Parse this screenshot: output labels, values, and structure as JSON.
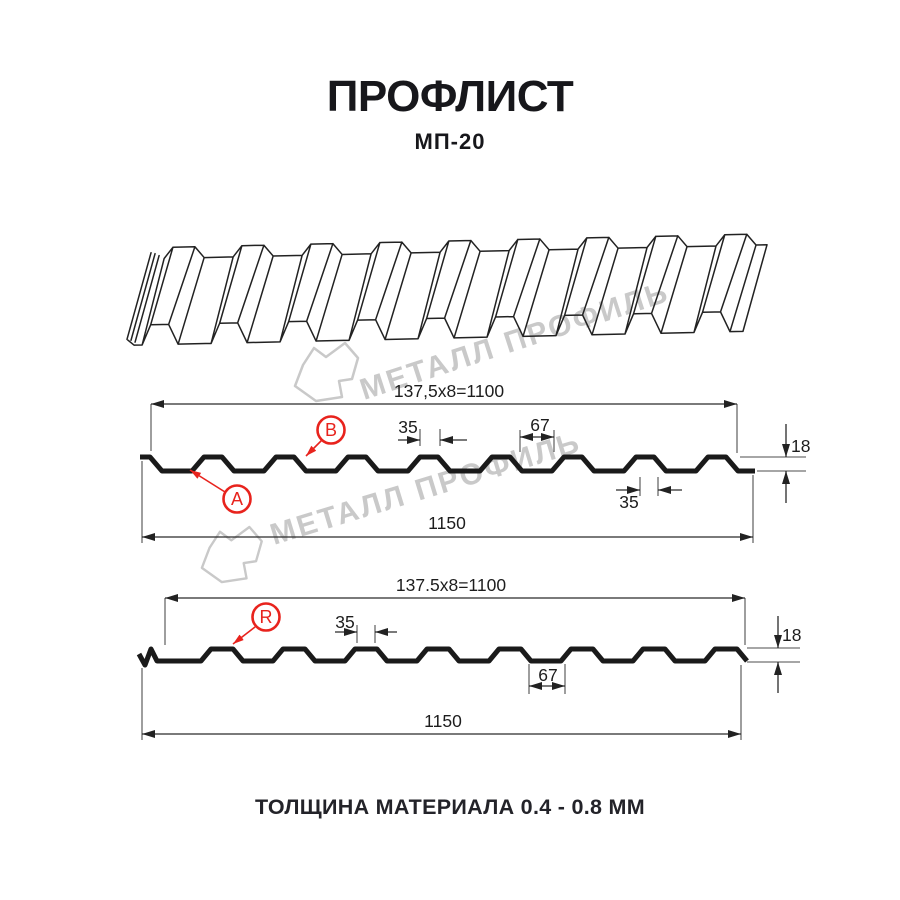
{
  "header": {
    "title": "ПРОФЛИСТ",
    "subtitle": "МП-20"
  },
  "footer": {
    "material_thickness_note": "ТОЛЩИНА МАТЕРИАЛА 0.4 - 0.8 ММ"
  },
  "watermark": {
    "brand": "МЕТАЛЛ ПРОФИЛЬ"
  },
  "colors": {
    "accent_red": "#e8231d",
    "line_black": "#1a1a1a",
    "dimension_gray": "#2a2a2a",
    "watermark_gray": "#c9c9c9"
  },
  "sections": {
    "top": {
      "width_formula": "137,5x8=1100",
      "crest_width_top": "35",
      "valley_width": "67",
      "profile_height": "18",
      "crest_width_bottom": "35",
      "overall_width": "1150",
      "label_valley": "A",
      "label_crest": "B"
    },
    "bottom": {
      "width_formula": "137.5x8=1100",
      "crest_width": "35",
      "profile_height": "18",
      "valley_width": "67",
      "overall_width": "1150",
      "label_radius": "R"
    }
  }
}
